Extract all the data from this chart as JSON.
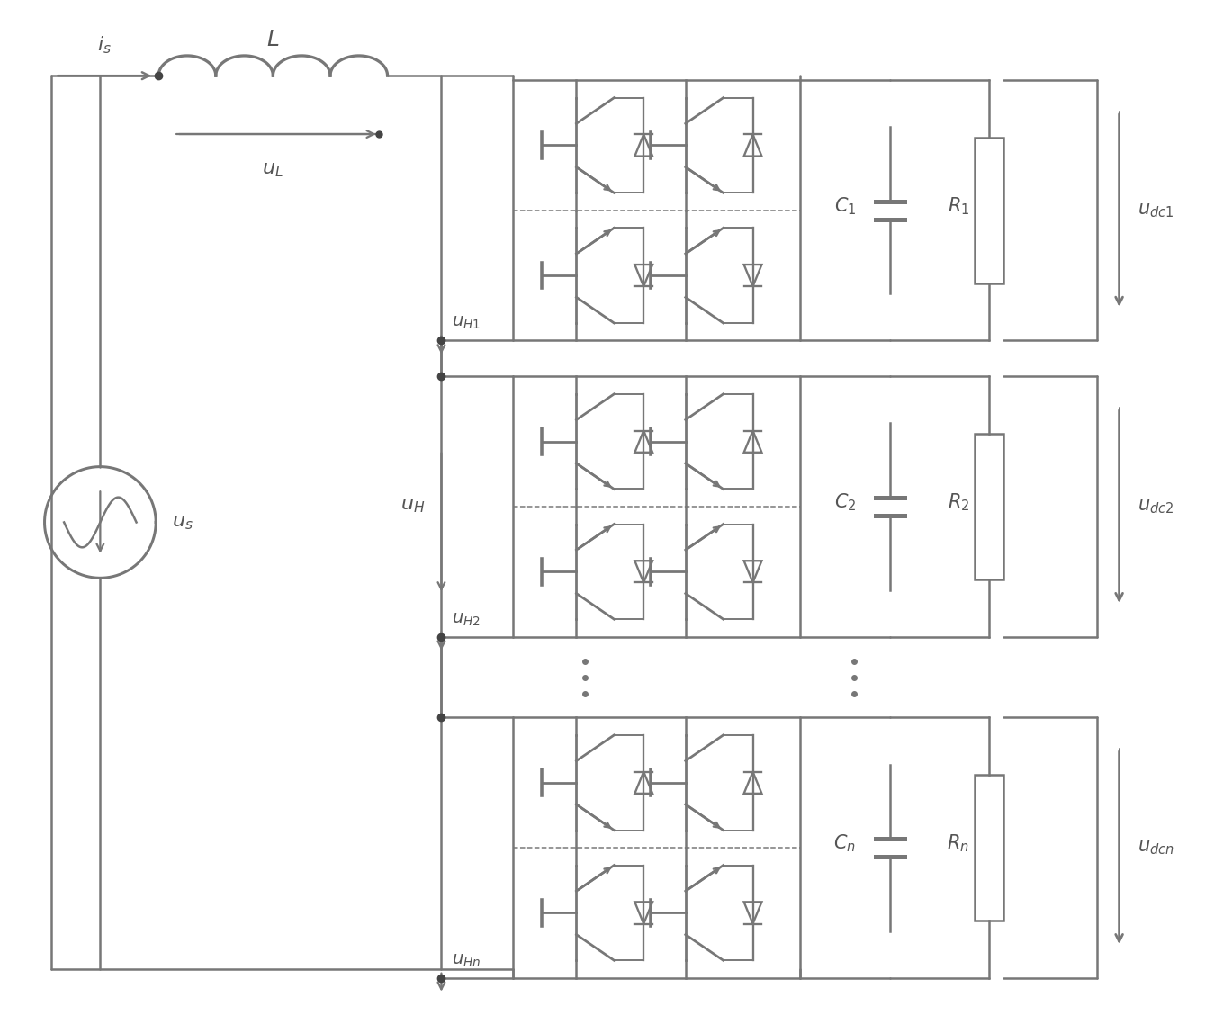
{
  "bg_color": "#ffffff",
  "line_color": "#777777",
  "line_width": 1.8,
  "text_color": "#555555",
  "fig_width": 13.4,
  "fig_height": 11.38,
  "dpi": 100
}
